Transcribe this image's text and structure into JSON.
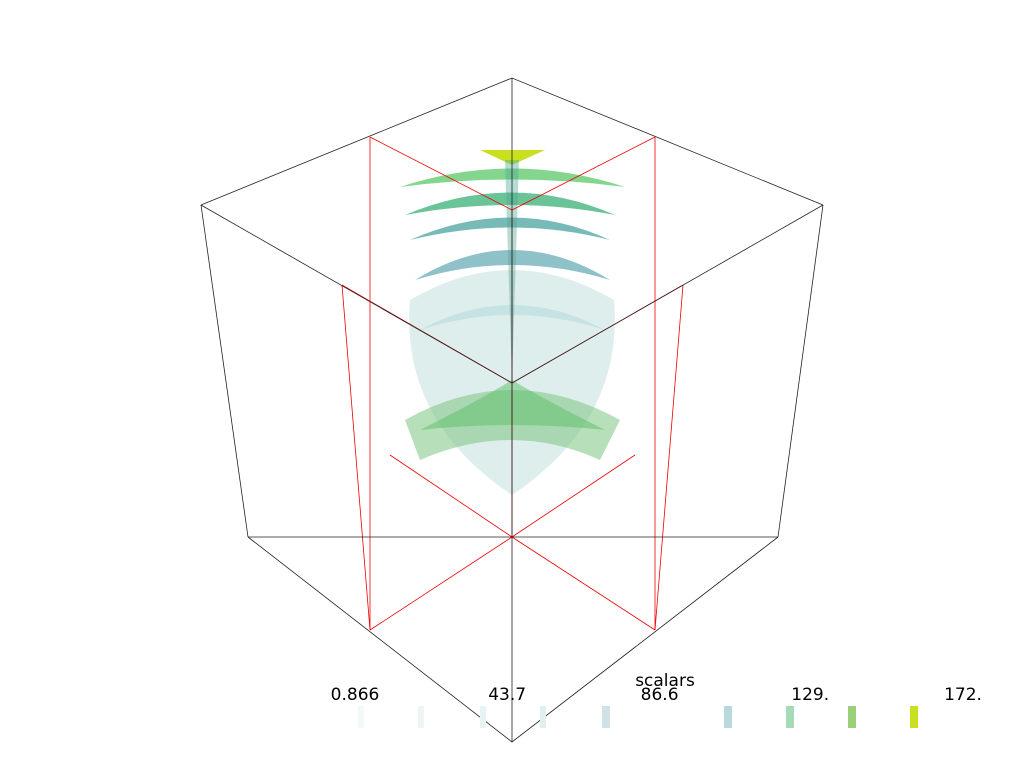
{
  "scalar_bar": {
    "title": "scalars",
    "ticks": [
      0.866,
      43.7,
      86.6,
      {
        "value": 129,
        "label": "129."
      },
      {
        "value": 172,
        "label": "172."
      }
    ]
  }
}
